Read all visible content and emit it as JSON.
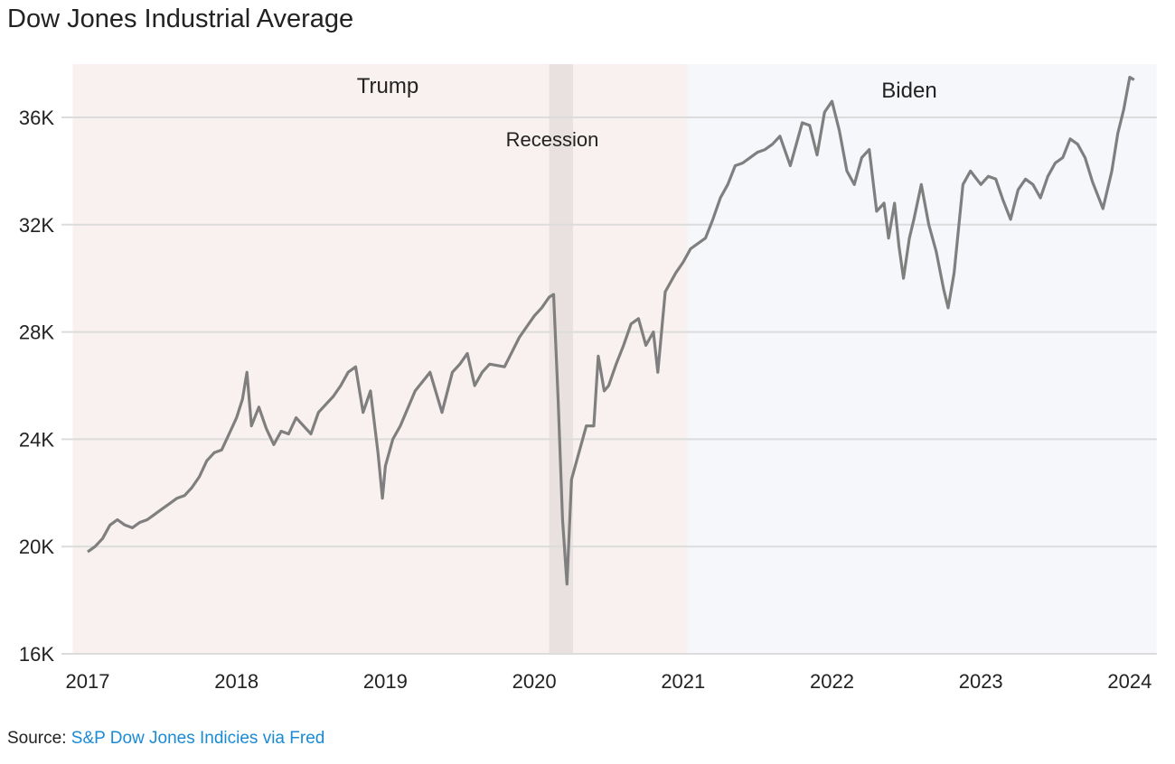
{
  "chart_data": {
    "type": "line",
    "title": "Dow Jones Industrial Average",
    "xlabel": "",
    "ylabel": "",
    "xlim": [
      2016.9,
      2024.18
    ],
    "ylim": [
      16000,
      37800
    ],
    "grid": true,
    "x_ticks": [
      2017,
      2018,
      2019,
      2020,
      2021,
      2022,
      2023,
      2024
    ],
    "x_tick_labels": [
      "2017",
      "2018",
      "2019",
      "2020",
      "2021",
      "2022",
      "2023",
      "2024"
    ],
    "y_ticks": [
      16000,
      20000,
      24000,
      28000,
      32000,
      36000
    ],
    "y_tick_labels": [
      "16K",
      "20K",
      "24K",
      "28K",
      "32K",
      "36K"
    ],
    "regions": [
      {
        "label": "Trump",
        "start": 2016.9,
        "end": 2021.03,
        "color": "#f9f1ef"
      },
      {
        "label": "Biden",
        "start": 2021.03,
        "end": 2024.18,
        "color": "#f6f7fb"
      },
      {
        "label": "Recession",
        "start": 2020.1,
        "end": 2020.26,
        "color": "#e8e1df"
      }
    ],
    "series": [
      {
        "name": "Dow Jones Industrial Average",
        "color": "#7f7f7f",
        "x": [
          2017.0,
          2017.05,
          2017.1,
          2017.15,
          2017.2,
          2017.25,
          2017.3,
          2017.35,
          2017.4,
          2017.45,
          2017.5,
          2017.55,
          2017.6,
          2017.65,
          2017.7,
          2017.75,
          2017.8,
          2017.85,
          2017.9,
          2017.95,
          2018.0,
          2018.04,
          2018.07,
          2018.1,
          2018.15,
          2018.2,
          2018.25,
          2018.3,
          2018.35,
          2018.4,
          2018.45,
          2018.5,
          2018.55,
          2018.6,
          2018.65,
          2018.7,
          2018.75,
          2018.8,
          2018.85,
          2018.9,
          2018.95,
          2018.98,
          2019.0,
          2019.05,
          2019.1,
          2019.2,
          2019.3,
          2019.38,
          2019.45,
          2019.5,
          2019.55,
          2019.6,
          2019.65,
          2019.7,
          2019.8,
          2019.9,
          2020.0,
          2020.05,
          2020.1,
          2020.13,
          2020.16,
          2020.19,
          2020.22,
          2020.25,
          2020.3,
          2020.35,
          2020.4,
          2020.43,
          2020.47,
          2020.5,
          2020.55,
          2020.6,
          2020.65,
          2020.7,
          2020.75,
          2020.8,
          2020.83,
          2020.88,
          2020.95,
          2021.0,
          2021.05,
          2021.1,
          2021.15,
          2021.2,
          2021.25,
          2021.3,
          2021.35,
          2021.4,
          2021.45,
          2021.5,
          2021.55,
          2021.6,
          2021.65,
          2021.72,
          2021.8,
          2021.85,
          2021.9,
          2021.95,
          2022.0,
          2022.05,
          2022.1,
          2022.15,
          2022.2,
          2022.25,
          2022.3,
          2022.35,
          2022.38,
          2022.42,
          2022.45,
          2022.48,
          2022.52,
          2022.55,
          2022.6,
          2022.65,
          2022.7,
          2022.75,
          2022.78,
          2022.82,
          2022.88,
          2022.93,
          2023.0,
          2023.05,
          2023.1,
          2023.15,
          2023.2,
          2023.25,
          2023.3,
          2023.35,
          2023.4,
          2023.45,
          2023.5,
          2023.55,
          2023.6,
          2023.65,
          2023.7,
          2023.75,
          2023.82,
          2023.88,
          2023.92,
          2023.96,
          2024.0,
          2024.03
        ],
        "y": [
          19800,
          20000,
          20300,
          20800,
          21000,
          20800,
          20700,
          20900,
          21000,
          21200,
          21400,
          21600,
          21800,
          21900,
          22200,
          22600,
          23200,
          23500,
          23600,
          24200,
          24800,
          25500,
          26500,
          24500,
          25200,
          24400,
          23800,
          24300,
          24200,
          24800,
          24500,
          24200,
          25000,
          25300,
          25600,
          26000,
          26500,
          26700,
          25000,
          25800,
          23500,
          21800,
          23000,
          24000,
          24500,
          25800,
          26500,
          25000,
          26500,
          26800,
          27200,
          26000,
          26500,
          26800,
          26700,
          27800,
          28600,
          28900,
          29300,
          29400,
          25500,
          21000,
          18600,
          22500,
          23500,
          24500,
          24500,
          27100,
          25800,
          26000,
          26800,
          27500,
          28300,
          28500,
          27500,
          28000,
          26500,
          29500,
          30200,
          30600,
          31100,
          31300,
          31500,
          32200,
          33000,
          33500,
          34200,
          34300,
          34500,
          34700,
          34800,
          35000,
          35300,
          34200,
          35800,
          35700,
          34600,
          36200,
          36600,
          35500,
          34000,
          33500,
          34500,
          34800,
          32500,
          32800,
          31500,
          32800,
          31200,
          30000,
          31500,
          32200,
          33500,
          32000,
          31000,
          29600,
          28900,
          30200,
          33500,
          34000,
          33500,
          33800,
          33700,
          32900,
          32200,
          33300,
          33700,
          33500,
          33000,
          33800,
          34300,
          34500,
          35200,
          35000,
          34500,
          33600,
          32600,
          34000,
          35400,
          36300,
          37500,
          37400
        ]
      }
    ]
  },
  "source": {
    "prefix": "Source: ",
    "link_text": "S&P Dow Jones Indicies via Fred"
  }
}
